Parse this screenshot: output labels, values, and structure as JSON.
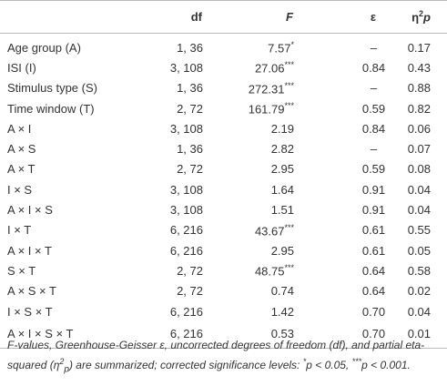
{
  "table": {
    "header": {
      "df": "df",
      "F": "F",
      "eps": "ε",
      "eta": {
        "symbol": "η",
        "sup": "2",
        "sub": "p"
      }
    },
    "rows": [
      {
        "effect": "Age group (A)",
        "df": "1, 36",
        "F": "7.57",
        "sig": "*",
        "eps": "–",
        "eta": "0.17"
      },
      {
        "effect": "ISI (I)",
        "df": "3, 108",
        "F": "27.06",
        "sig": "***",
        "eps": "0.84",
        "eta": "0.43"
      },
      {
        "effect": "Stimulus type (S)",
        "df": "1, 36",
        "F": "272.31",
        "sig": "***",
        "eps": "–",
        "eta": "0.88"
      },
      {
        "effect": "Time window (T)",
        "df": "2, 72",
        "F": "161.79",
        "sig": "***",
        "eps": "0.59",
        "eta": "0.82"
      },
      {
        "effect": "A × I",
        "df": "3, 108",
        "F": "2.19",
        "eps": "0.84",
        "eta": "0.06"
      },
      {
        "effect": "A × S",
        "df": "1, 36",
        "F": "2.82",
        "eps": "–",
        "eta": "0.07"
      },
      {
        "effect": "A × T",
        "df": "2, 72",
        "F": "2.95",
        "eps": "0.59",
        "eta": "0.08"
      },
      {
        "effect": "I × S",
        "df": "3, 108",
        "F": "1.64",
        "eps": "0.91",
        "eta": "0.04"
      },
      {
        "effect": "A × I × S",
        "df": "3, 108",
        "F": "1.51",
        "eps": "0.91",
        "eta": "0.04"
      },
      {
        "effect": "I × T",
        "df": "6, 216",
        "F": "43.67",
        "sig": "***",
        "eps": "0.61",
        "eta": "0.55"
      },
      {
        "effect": "A × I × T",
        "df": "6, 216",
        "F": "2.95",
        "eps": "0.61",
        "eta": "0.05"
      },
      {
        "effect": "S × T",
        "df": "2, 72",
        "F": "48.75",
        "sig": "***",
        "eps": "0.64",
        "eta": "0.58"
      },
      {
        "effect": "A × S × T",
        "df": "2, 72",
        "F": "0.74",
        "eps": "0.64",
        "eta": "0.02"
      },
      {
        "effect": "I × S × T",
        "df": "6, 216",
        "F": "1.42",
        "eps": "0.70",
        "eta": "0.04"
      },
      {
        "effect": "A × I × S × T",
        "df": "6, 216",
        "F": "0.53",
        "eps": "0.70",
        "eta": "0.01"
      }
    ]
  },
  "footnote": [
    {
      "text": "F-values, Greenhouse-Geisser ε, uncorrected degrees of freedom (df), and partial eta-squared (η"
    },
    {
      "text": "2",
      "style": "sup"
    },
    {
      "text": "p",
      "style": "sub"
    },
    {
      "text": ") are summarized; corrected significance levels: "
    },
    {
      "text": "*",
      "style": "sup"
    },
    {
      "text": "p < 0.05, "
    },
    {
      "text": "***",
      "style": "sup"
    },
    {
      "text": "p < 0.001."
    }
  ]
}
